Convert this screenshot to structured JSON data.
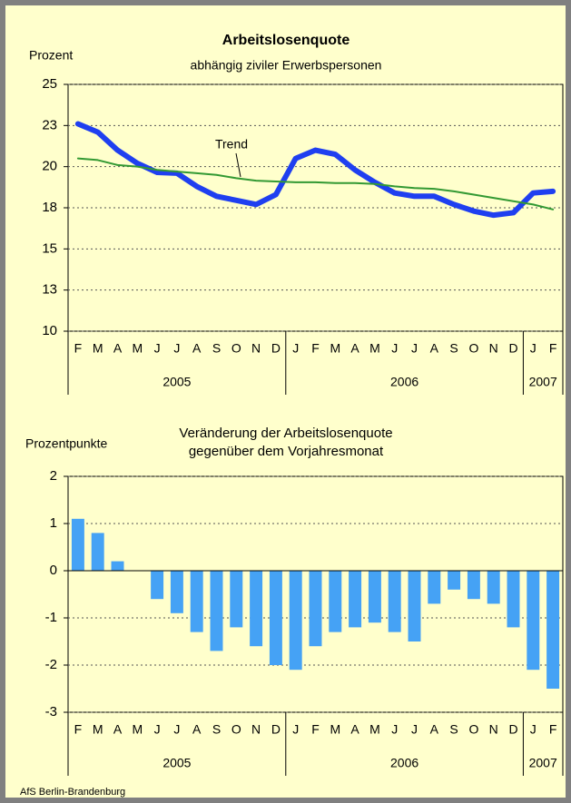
{
  "chart_data": [
    {
      "type": "line",
      "title": "Arbeitslosenquote",
      "subtitle": "abhängig ziviler Erwerbspersonen",
      "y_label": "Prozent",
      "categories": [
        "F",
        "M",
        "A",
        "M",
        "J",
        "J",
        "A",
        "S",
        "O",
        "N",
        "D",
        "J",
        "F",
        "M",
        "A",
        "M",
        "J",
        "J",
        "A",
        "S",
        "O",
        "N",
        "D",
        "J",
        "F"
      ],
      "years": [
        "2005",
        "2006",
        "2007"
      ],
      "series": [
        {
          "name": "Arbeitslosenquote",
          "color": "#1f3ff0",
          "values": [
            22.6,
            22.1,
            21.0,
            20.2,
            19.65,
            19.6,
            18.8,
            18.2,
            17.95,
            17.7,
            18.3,
            20.5,
            21.0,
            20.75,
            19.8,
            19.05,
            18.4,
            18.2,
            18.2,
            17.7,
            17.3,
            17.05,
            17.2,
            18.4,
            18.5
          ]
        },
        {
          "name": "Trend",
          "color": "#339933",
          "values": [
            20.5,
            20.4,
            20.1,
            20.0,
            19.8,
            19.7,
            19.6,
            19.5,
            19.3,
            19.15,
            19.1,
            19.05,
            19.05,
            19.0,
            19.0,
            18.95,
            18.8,
            18.7,
            18.65,
            18.5,
            18.3,
            18.1,
            17.9,
            17.7,
            17.4
          ]
        }
      ],
      "annotation": "Trend",
      "ylim": [
        10,
        25
      ],
      "yticks": [
        10,
        {
          "value": 12.5,
          "label": "13"
        },
        15,
        {
          "value": 17.5,
          "label": "18"
        },
        20,
        {
          "value": 22.5,
          "label": "23"
        },
        25
      ],
      "grid": true
    },
    {
      "type": "bar",
      "title": "Veränderung der Arbeitslosenquote",
      "subtitle": "gegenüber dem Vorjahresmonat",
      "y_label": "Prozentpunkte",
      "categories": [
        "F",
        "M",
        "A",
        "M",
        "J",
        "J",
        "A",
        "S",
        "O",
        "N",
        "D",
        "J",
        "F",
        "M",
        "A",
        "M",
        "J",
        "J",
        "A",
        "S",
        "O",
        "N",
        "D",
        "J",
        "F"
      ],
      "years": [
        "2005",
        "2006",
        "2007"
      ],
      "values": [
        1.1,
        0.8,
        0.2,
        0,
        -0.6,
        -0.9,
        -1.3,
        -1.7,
        -1.2,
        -1.6,
        -2.0,
        -2.1,
        -1.6,
        -1.3,
        -1.2,
        -1.1,
        -1.3,
        -1.5,
        -0.7,
        -0.4,
        -0.6,
        -0.7,
        -1.2,
        -2.1,
        -2.5
      ],
      "color": "#45a2f5",
      "ylim": [
        -3,
        2
      ],
      "yticks": [
        -3,
        -2,
        -1,
        0,
        1,
        2
      ],
      "grid": true
    }
  ],
  "source": "AfS Berlin-Brandenburg"
}
